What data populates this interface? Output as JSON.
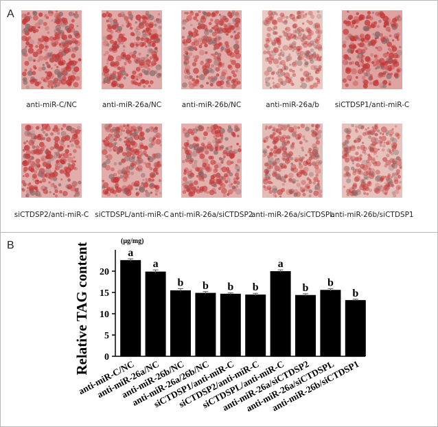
{
  "panel_a": {
    "label": "A",
    "captions": [
      "anti-miR-C/NC",
      "anti-miR-26a/NC",
      "anti-miR-26b/NC",
      "anti-miR-26a/b",
      "siCTDSP1/anti-miR-C",
      "siCTDSP2/anti-miR-C",
      "siCTDSPL/anti-miR-C",
      "anti-miR-26a/siCTDSP2",
      "anti-miR-26a/siCTDSPL",
      "anti-miR-26b/siCTDSP1"
    ]
  },
  "chart_data": {
    "type": "bar",
    "panel_label": "B",
    "ylabel": "Relative TAG content",
    "unit": "(μg/mg)",
    "categories": [
      "anti-miR-C/NC",
      "anti-miR-26a/NC",
      "anti-miR-26b/NC",
      "anti-miR-26a/26b/NC",
      "siCTDSP1/anti-miR-C",
      "siCTDSP2/anti-miR-C",
      "siCTDSPL/anti-miR-C",
      "anti-miR-26a/siCTDSP2",
      "anti-miR-26a/siCTDSPL",
      "anti-miR-26b/siCTDSP1"
    ],
    "values": [
      22.6,
      19.9,
      15.5,
      14.9,
      14.7,
      14.5,
      20.0,
      14.4,
      15.6,
      13.2
    ],
    "errors": [
      0.3,
      0.4,
      0.4,
      0.3,
      0.2,
      0.3,
      0.3,
      0.3,
      0.3,
      0.2
    ],
    "annotations": [
      "a",
      "a",
      "b",
      "b",
      "b",
      "b",
      "a",
      "b",
      "b",
      "b"
    ],
    "color": "#000000",
    "ylim": [
      0,
      25
    ],
    "yticks": [
      0,
      5,
      10,
      15,
      20
    ]
  }
}
